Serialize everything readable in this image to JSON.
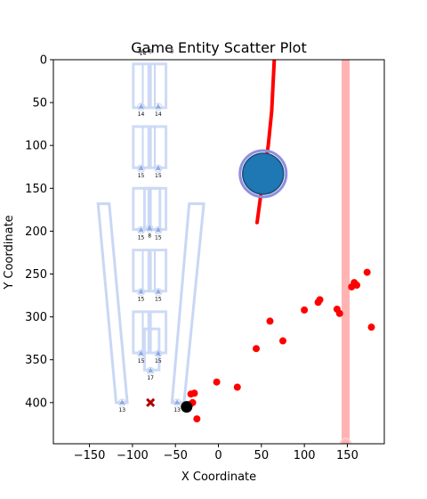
{
  "chart_data": {
    "type": "scatter",
    "title": "Game Entity Scatter Plot",
    "xlabel": "X Coordinate",
    "ylabel": "Y Coordinate",
    "xlim": [
      -192,
      193
    ],
    "ylim": [
      448,
      0
    ],
    "y_inverted": true,
    "xticks": [
      -150,
      -100,
      -50,
      0,
      50,
      100,
      150
    ],
    "yticks": [
      0,
      50,
      100,
      150,
      200,
      250,
      300,
      350,
      400
    ],
    "grid": false,
    "colors": {
      "red_points": "#ff0000",
      "red_line": "#ff0000",
      "pink_band": "#ffb3b3",
      "frames": "#c9d7f5",
      "frame_markers": "#7f9fd9",
      "big_circle_fill": "#1f77b4",
      "big_circle_ring": "#8e8ee0",
      "player": "#000000",
      "x_marker": "#b30000"
    },
    "red_points": [
      [
        -32,
        390
      ],
      [
        -28,
        389
      ],
      [
        -30,
        400
      ],
      [
        -33,
        402
      ],
      [
        -25,
        419
      ],
      [
        -2,
        376
      ],
      [
        22,
        382
      ],
      [
        44,
        337
      ],
      [
        60,
        305
      ],
      [
        75,
        328
      ],
      [
        100,
        292
      ],
      [
        116,
        283
      ],
      [
        118,
        280
      ],
      [
        138,
        291
      ],
      [
        141,
        296
      ],
      [
        155,
        265
      ],
      [
        158,
        260
      ],
      [
        161,
        263
      ],
      [
        173,
        248
      ],
      [
        178,
        312
      ]
    ],
    "red_line": [
      [
        65,
        0
      ],
      [
        64,
        20
      ],
      [
        63,
        40
      ],
      [
        62,
        60
      ],
      [
        60,
        80
      ],
      [
        58,
        100
      ],
      [
        55,
        120
      ],
      [
        52,
        140
      ],
      [
        49,
        160
      ],
      [
        47,
        175
      ],
      [
        45,
        190
      ]
    ],
    "big_circle": {
      "x": 52,
      "y": 133
    },
    "player": {
      "x": -37,
      "y": 405
    },
    "x_marker": {
      "x": -79,
      "y": 400
    },
    "pink_band": {
      "x": 148,
      "y_top": 0,
      "y_bottom": 448
    },
    "rectangles": [
      {
        "x1": -99,
        "y1": 5,
        "x2": -81,
        "y2": 56
      },
      {
        "x1": -79,
        "y1": 5,
        "x2": -61,
        "y2": 56
      },
      {
        "x1": -99,
        "y1": 78,
        "x2": -81,
        "y2": 126
      },
      {
        "x1": -79,
        "y1": 78,
        "x2": -61,
        "y2": 126
      },
      {
        "x1": -99,
        "y1": 150,
        "x2": -81,
        "y2": 198
      },
      {
        "x1": -86,
        "y1": 150,
        "x2": -68,
        "y2": 198
      },
      {
        "x1": -79,
        "y1": 150,
        "x2": -61,
        "y2": 198
      },
      {
        "x1": -99,
        "y1": 222,
        "x2": -81,
        "y2": 270
      },
      {
        "x1": -79,
        "y1": 222,
        "x2": -61,
        "y2": 270
      },
      {
        "x1": -99,
        "y1": 294,
        "x2": -81,
        "y2": 342
      },
      {
        "x1": -86,
        "y1": 314,
        "x2": -69,
        "y2": 362
      },
      {
        "x1": -79,
        "y1": 294,
        "x2": -61,
        "y2": 342
      }
    ],
    "poles": [
      {
        "x": -88,
        "y1": 5,
        "y2": 56
      },
      {
        "x": -74,
        "y1": 5,
        "y2": 56
      },
      {
        "x": -88,
        "y1": 78,
        "y2": 126
      },
      {
        "x": -74,
        "y1": 78,
        "y2": 126
      },
      {
        "x": -80,
        "y1": 150,
        "y2": 198
      },
      {
        "x": -88,
        "y1": 222,
        "y2": 270
      },
      {
        "x": -74,
        "y1": 222,
        "y2": 270
      },
      {
        "x": -88,
        "y1": 294,
        "y2": 342
      }
    ],
    "slanted_bars": [
      [
        [
          -140,
          168
        ],
        [
          -127,
          168
        ],
        [
          -106,
          400
        ],
        [
          -119,
          400
        ]
      ],
      [
        [
          -34,
          168
        ],
        [
          -17,
          168
        ],
        [
          -40,
          400
        ],
        [
          -54,
          400
        ]
      ]
    ],
    "frame_markers": [
      {
        "x": -90,
        "y": 55,
        "label": "14"
      },
      {
        "x": -70,
        "y": 55,
        "label": "14"
      },
      {
        "x": -90,
        "y": 127,
        "label": "15"
      },
      {
        "x": -70,
        "y": 127,
        "label": "15"
      },
      {
        "x": -90,
        "y": 199,
        "label": "15"
      },
      {
        "x": -80,
        "y": 197,
        "label": "8"
      },
      {
        "x": -70,
        "y": 199,
        "label": "15"
      },
      {
        "x": -90,
        "y": 271,
        "label": "15"
      },
      {
        "x": -70,
        "y": 271,
        "label": "15"
      },
      {
        "x": -90,
        "y": 343,
        "label": "15"
      },
      {
        "x": -70,
        "y": 343,
        "label": "15"
      },
      {
        "x": -79,
        "y": 363,
        "label": "17"
      },
      {
        "x": -112,
        "y": 400,
        "label": "13"
      },
      {
        "x": -48,
        "y": 400,
        "label": "13"
      }
    ],
    "top_labels": [
      {
        "x": -90,
        "y": -8,
        "label": "14"
      },
      {
        "x": -79,
        "y": -8,
        "label": "8"
      },
      {
        "x": -54,
        "y": -8,
        "label": "8"
      },
      {
        "x": -88,
        "y": -5,
        "label": "14"
      }
    ]
  }
}
